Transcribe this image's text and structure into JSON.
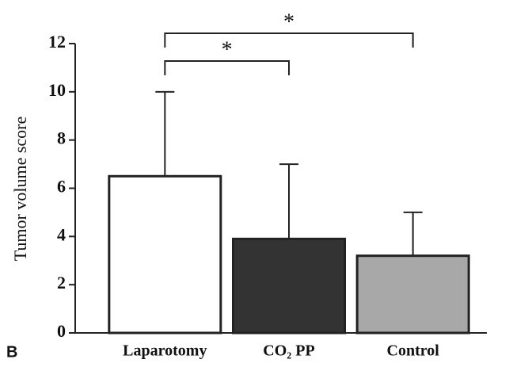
{
  "chart_data": {
    "type": "bar",
    "panel_label": "B",
    "ylabel": "Tumor volume score",
    "categories": [
      "Laparotomy",
      "CO₂ PP",
      "Control"
    ],
    "values": [
      6.5,
      3.9,
      3.2
    ],
    "errors": [
      3.5,
      3.1,
      1.8
    ],
    "colors": [
      "#ffffff",
      "#333333",
      "#a8a8a8"
    ],
    "ylim": [
      0,
      12
    ],
    "yticks": [
      0,
      2,
      4,
      6,
      8,
      10,
      12
    ],
    "annotations": [
      "*",
      "*"
    ]
  }
}
